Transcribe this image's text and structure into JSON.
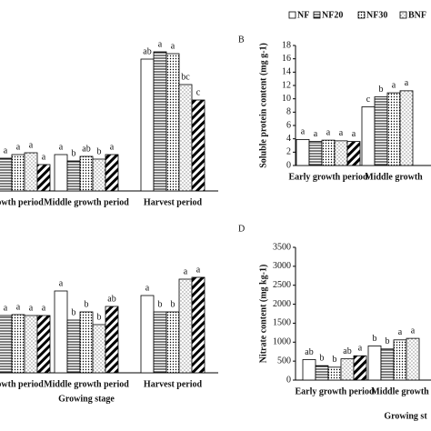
{
  "chart_data": [
    {
      "type": "bar",
      "categories": [
        "rowth period",
        "Middle growth period",
        "Harvest period"
      ],
      "ylim": [
        0,
        170
      ],
      "series": [
        {
          "pattern": "none",
          "values": [
            35,
            40,
            145
          ],
          "letters": [
            "a",
            "a",
            "ab"
          ]
        },
        {
          "pattern": "hline",
          "values": [
            36,
            33,
            153
          ],
          "letters": [
            "a",
            "b",
            "a"
          ]
        },
        {
          "pattern": "dots",
          "values": [
            40,
            38,
            151
          ],
          "letters": [
            "a",
            "ab",
            "a"
          ]
        },
        {
          "pattern": "dots2",
          "values": [
            42,
            35,
            117
          ],
          "letters": [
            "a",
            "b",
            "bc"
          ]
        },
        {
          "pattern": "diag",
          "values": [
            29,
            40,
            100
          ],
          "letters": [
            "a",
            "a",
            "c"
          ]
        }
      ]
    },
    {
      "type": "bar",
      "panel": "B",
      "ylabel": "Soluble protein content (mg g-1)",
      "categories": [
        "Early growth period",
        "Middle growth"
      ],
      "ylim": [
        0,
        18
      ],
      "yticks": [
        0,
        2,
        4,
        6,
        8,
        10,
        12,
        14,
        16,
        18
      ],
      "series": [
        {
          "name": "NF",
          "pattern": "none",
          "values": [
            3.9,
            8.8
          ],
          "letters": [
            "a",
            "c"
          ]
        },
        {
          "name": "NF20",
          "pattern": "hline",
          "values": [
            3.6,
            10.3
          ],
          "letters": [
            "a",
            "b"
          ]
        },
        {
          "name": "NF30",
          "pattern": "dots",
          "values": [
            3.8,
            10.9
          ],
          "letters": [
            "a",
            "a"
          ]
        },
        {
          "name": "BNF",
          "pattern": "dots2",
          "values": [
            3.7,
            11.2
          ],
          "letters": [
            "a",
            "a"
          ]
        },
        {
          "pattern": "diag",
          "values": [
            3.6,
            null
          ],
          "letters": [
            "a",
            null
          ]
        }
      ]
    },
    {
      "type": "bar",
      "categories": [
        "rowth period",
        "Middle growth period",
        "Harvest period"
      ],
      "xlabel": "Growing stage",
      "ylim": [
        0,
        150
      ],
      "series": [
        {
          "pattern": "none",
          "values": [
            63,
            90,
            85
          ],
          "letters": [
            "a",
            "a",
            "a"
          ]
        },
        {
          "pattern": "hline",
          "values": [
            63,
            58,
            67
          ],
          "letters": [
            "a",
            "b",
            "b"
          ]
        },
        {
          "pattern": "dots",
          "values": [
            64,
            67,
            67
          ],
          "letters": [
            "a",
            "b",
            "b"
          ]
        },
        {
          "pattern": "dots2",
          "values": [
            63,
            53,
            103
          ],
          "letters": [
            "a",
            "b",
            "a"
          ]
        },
        {
          "pattern": "diag",
          "values": [
            63,
            73,
            105
          ],
          "letters": [
            "a",
            "ab",
            "a"
          ]
        }
      ]
    },
    {
      "type": "bar",
      "panel": "D",
      "ylabel": "Nitrate content (mg kg-1)",
      "xlabel": "Growing st",
      "categories": [
        "Early growth period",
        "Middle growth"
      ],
      "ylim": [
        0,
        3500
      ],
      "yticks": [
        0,
        500,
        1000,
        1500,
        2000,
        2500,
        3000,
        3500
      ],
      "series": [
        {
          "pattern": "none",
          "values": [
            540,
            900
          ],
          "letters": [
            "ab",
            "b"
          ]
        },
        {
          "pattern": "hline",
          "values": [
            380,
            820
          ],
          "letters": [
            "b",
            "b"
          ]
        },
        {
          "pattern": "dots",
          "values": [
            340,
            1060
          ],
          "letters": [
            "b",
            "a"
          ]
        },
        {
          "pattern": "dots2",
          "values": [
            560,
            1100
          ],
          "letters": [
            "ab",
            "a"
          ]
        },
        {
          "pattern": "diag",
          "values": [
            640,
            null
          ],
          "letters": [
            "a",
            null
          ]
        }
      ]
    }
  ]
}
